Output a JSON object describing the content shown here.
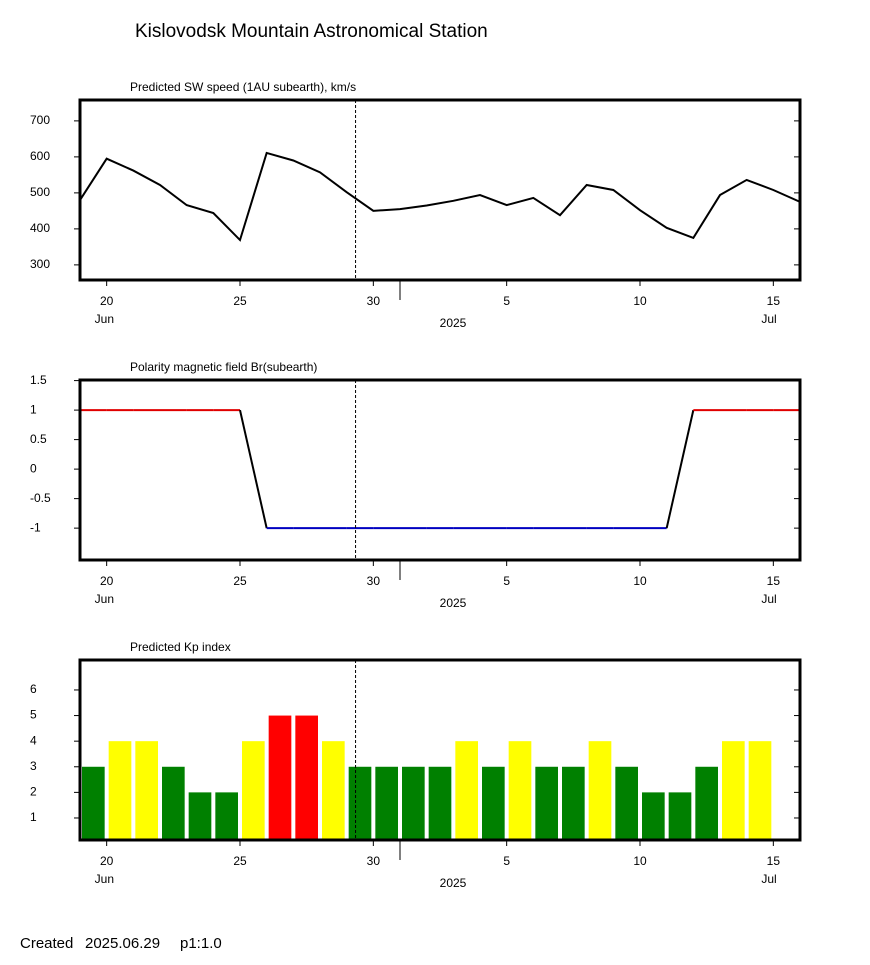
{
  "title": "Kislovodsk Mountain Astronomical Station",
  "footer": {
    "created_label": "Created",
    "created_date": "2025.06.29",
    "page": "p1:1.0"
  },
  "chart_data": [
    {
      "type": "line",
      "title": "Predicted SW speed (1AU subearth), km/s",
      "x": [
        "2025-06-19",
        "2025-06-20",
        "2025-06-21",
        "2025-06-22",
        "2025-06-23",
        "2025-06-24",
        "2025-06-25",
        "2025-06-26",
        "2025-06-27",
        "2025-06-28",
        "2025-06-29",
        "2025-06-30",
        "2025-07-01",
        "2025-07-02",
        "2025-07-03",
        "2025-07-04",
        "2025-07-05",
        "2025-07-06",
        "2025-07-07",
        "2025-07-08",
        "2025-07-09",
        "2025-07-10",
        "2025-07-11",
        "2025-07-12",
        "2025-07-13",
        "2025-07-14",
        "2025-07-15",
        "2025-07-16"
      ],
      "values": [
        480,
        595,
        562,
        522,
        466,
        444,
        369,
        611,
        590,
        557,
        502,
        450,
        455,
        465,
        478,
        494,
        466,
        486,
        438,
        522,
        508,
        452,
        403,
        375,
        494,
        536,
        508,
        475
      ],
      "color": "#000000",
      "xlim": [
        "2025-06-19",
        "2025-07-16"
      ],
      "ylim": [
        258,
        758
      ],
      "yticks": [
        300,
        400,
        500,
        600,
        700
      ],
      "xticks": [
        {
          "value": "2025-06-20",
          "label": "20"
        },
        {
          "value": "2025-06-25",
          "label": "25"
        },
        {
          "value": "2025-06-30",
          "label": "30"
        },
        {
          "value": "2025-07-05",
          "label": "5"
        },
        {
          "value": "2025-07-10",
          "label": "10"
        },
        {
          "value": "2025-07-15",
          "label": "15"
        }
      ],
      "month_labels": [
        {
          "value": "2025-06-20",
          "label": "Jun"
        },
        {
          "value": "2025-07-15",
          "label": "Jul"
        }
      ],
      "month_break": "2025-07-01",
      "year_label": "2025",
      "now_line": "2025-06-29T08:00:00Z"
    },
    {
      "type": "polarity",
      "title": "Polarity magnetic field  Br(subearth)",
      "x": [
        "2025-06-19",
        "2025-06-20",
        "2025-06-21",
        "2025-06-22",
        "2025-06-23",
        "2025-06-24",
        "2025-06-25",
        "2025-06-26",
        "2025-06-27",
        "2025-06-28",
        "2025-06-29",
        "2025-06-30",
        "2025-07-01",
        "2025-07-02",
        "2025-07-03",
        "2025-07-04",
        "2025-07-05",
        "2025-07-06",
        "2025-07-07",
        "2025-07-08",
        "2025-07-09",
        "2025-07-10",
        "2025-07-11",
        "2025-07-12",
        "2025-07-13",
        "2025-07-14",
        "2025-07-15",
        "2025-07-16"
      ],
      "values": [
        1,
        1,
        1,
        1,
        1,
        1,
        1,
        -1,
        -1,
        -1,
        -1,
        -1,
        -1,
        -1,
        -1,
        -1,
        -1,
        -1,
        -1,
        -1,
        -1,
        -1,
        -1,
        1,
        1,
        1,
        1,
        1
      ],
      "positive_color": "#e00000",
      "negative_color": "#0000c0",
      "color": "#000000",
      "xlim": [
        "2025-06-19",
        "2025-07-16"
      ],
      "ylim": [
        -1.54,
        1.51
      ],
      "yticks": [
        1.5,
        1,
        0.5,
        0,
        -0.5,
        -1
      ],
      "xticks": [
        {
          "value": "2025-06-20",
          "label": "20"
        },
        {
          "value": "2025-06-25",
          "label": "25"
        },
        {
          "value": "2025-06-30",
          "label": "30"
        },
        {
          "value": "2025-07-05",
          "label": "5"
        },
        {
          "value": "2025-07-10",
          "label": "10"
        },
        {
          "value": "2025-07-15",
          "label": "15"
        }
      ],
      "month_labels": [
        {
          "value": "2025-06-20",
          "label": "Jun"
        },
        {
          "value": "2025-07-15",
          "label": "Jul"
        }
      ],
      "month_break": "2025-07-01",
      "year_label": "2025",
      "now_line": "2025-06-29T08:00:00Z"
    },
    {
      "type": "bar",
      "title": "Predicted Kp index",
      "x": [
        "2025-06-19",
        "2025-06-20",
        "2025-06-21",
        "2025-06-22",
        "2025-06-23",
        "2025-06-24",
        "2025-06-25",
        "2025-06-26",
        "2025-06-27",
        "2025-06-28",
        "2025-06-29",
        "2025-06-30",
        "2025-07-01",
        "2025-07-02",
        "2025-07-03",
        "2025-07-04",
        "2025-07-05",
        "2025-07-06",
        "2025-07-07",
        "2025-07-08",
        "2025-07-09",
        "2025-07-10",
        "2025-07-11",
        "2025-07-12",
        "2025-07-13",
        "2025-07-14"
      ],
      "values": [
        3,
        4,
        4,
        3,
        2,
        2,
        4,
        5,
        5,
        4,
        3,
        3,
        3,
        3,
        4,
        3,
        4,
        3,
        3,
        4,
        3,
        2,
        2,
        3,
        4,
        4
      ],
      "colors": [
        "#008000",
        "#ffff00",
        "#ffff00",
        "#008000",
        "#008000",
        "#008000",
        "#ffff00",
        "#ff0000",
        "#ff0000",
        "#ffff00",
        "#008000",
        "#008000",
        "#008000",
        "#008000",
        "#ffff00",
        "#008000",
        "#ffff00",
        "#008000",
        "#008000",
        "#ffff00",
        "#008000",
        "#008000",
        "#008000",
        "#008000",
        "#ffff00",
        "#ffff00"
      ],
      "xlim": [
        "2025-06-19",
        "2025-07-16"
      ],
      "ylim": [
        0.14,
        7.17
      ],
      "yticks": [
        1,
        2,
        3,
        4,
        5,
        6
      ],
      "xticks": [
        {
          "value": "2025-06-20",
          "label": "20"
        },
        {
          "value": "2025-06-25",
          "label": "25"
        },
        {
          "value": "2025-06-30",
          "label": "30"
        },
        {
          "value": "2025-07-05",
          "label": "5"
        },
        {
          "value": "2025-07-10",
          "label": "10"
        },
        {
          "value": "2025-07-15",
          "label": "15"
        }
      ],
      "month_labels": [
        {
          "value": "2025-06-20",
          "label": "Jun"
        },
        {
          "value": "2025-07-15",
          "label": "Jul"
        }
      ],
      "month_break": "2025-07-01",
      "year_label": "2025",
      "now_line": "2025-06-29T08:00:00Z"
    }
  ]
}
